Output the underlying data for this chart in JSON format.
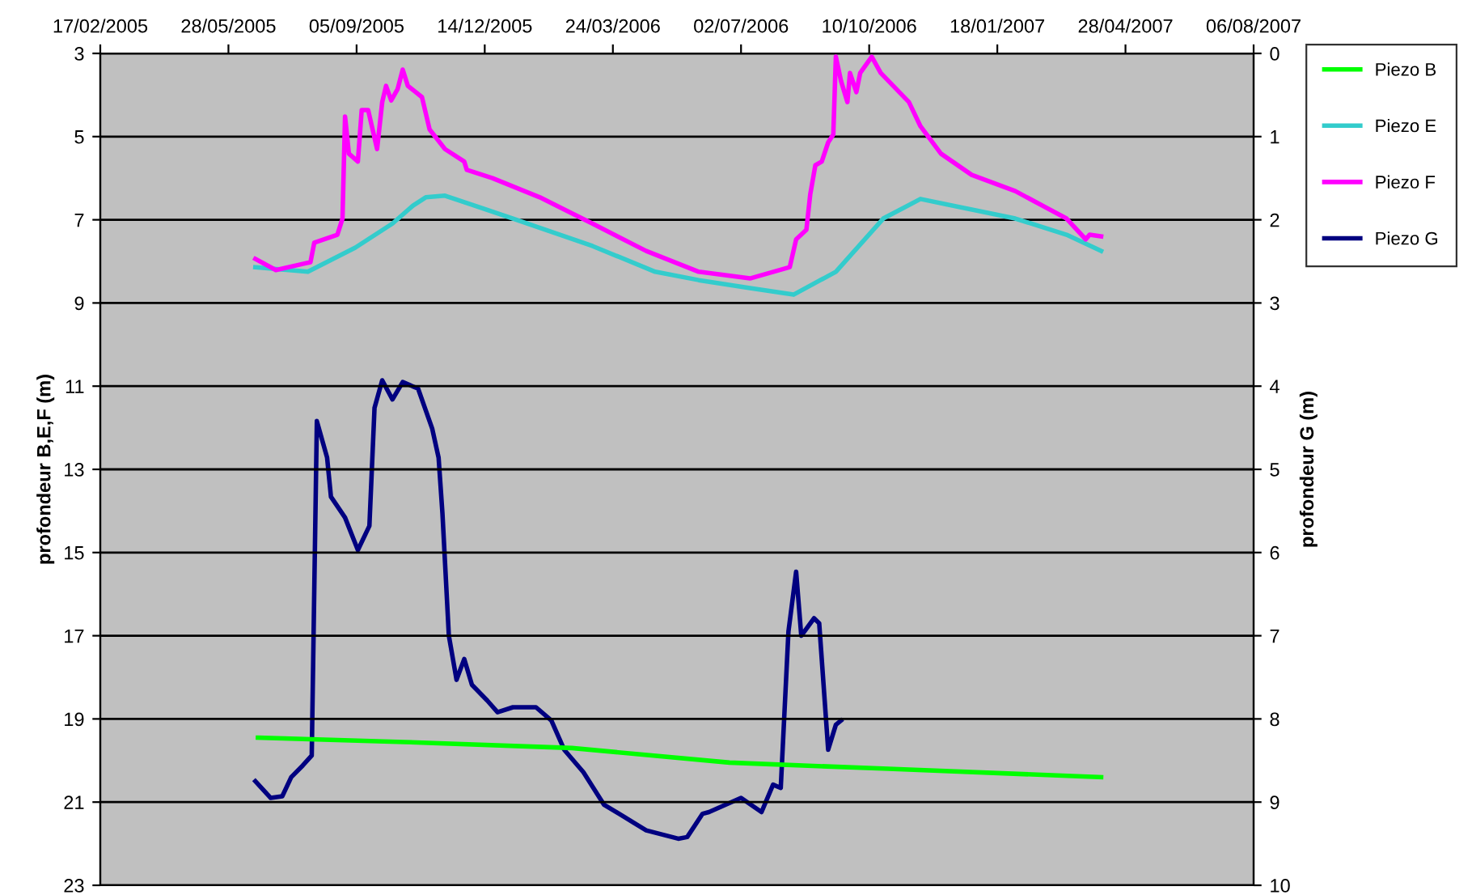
{
  "chart_data": {
    "type": "line",
    "ylabel": "profondeur B,E,F (m)",
    "y2label": "profondeur G (m)",
    "xlim": [
      "2005-02-17",
      "2007-08-06"
    ],
    "xticks": [
      {
        "value": "2005-02-17",
        "label": "17/02/2005"
      },
      {
        "value": "2005-05-28",
        "label": "28/05/2005"
      },
      {
        "value": "2005-09-05",
        "label": "05/09/2005"
      },
      {
        "value": "2005-12-14",
        "label": "14/12/2005"
      },
      {
        "value": "2006-03-24",
        "label": "24/03/2006"
      },
      {
        "value": "2006-07-02",
        "label": "02/07/2006"
      },
      {
        "value": "2006-10-10",
        "label": "10/10/2006"
      },
      {
        "value": "2007-01-18",
        "label": "18/01/2007"
      },
      {
        "value": "2007-04-28",
        "label": "28/04/2007"
      },
      {
        "value": "2007-08-06",
        "label": "06/08/2007"
      }
    ],
    "ylim": [
      23,
      3
    ],
    "yticks": [
      3,
      5,
      7,
      9,
      11,
      13,
      15,
      17,
      19,
      21,
      23
    ],
    "y2lim": [
      10,
      0
    ],
    "y2ticks": [
      0,
      1,
      2,
      3,
      4,
      5,
      6,
      7,
      8,
      9,
      10
    ],
    "grid": "y",
    "legend": "right",
    "line_style": "solid",
    "marker": "none",
    "series": [
      {
        "name": "Piezo B",
        "color": "#00ff00",
        "x": [
          "2005-06-20",
          "2005-10-07",
          "2006-02-20",
          "2006-06-23",
          "2006-10-25",
          "2007-04-09"
        ],
        "values": [
          19.45,
          19.55,
          19.7,
          20.05,
          20.2,
          20.4
        ]
      },
      {
        "name": "Piezo E",
        "color": "#33cccc",
        "x": [
          "2005-06-18",
          "2005-07-29",
          "2005-09-04",
          "2005-10-03",
          "2005-10-19",
          "2005-10-29",
          "2005-11-13",
          "2006-01-05",
          "2006-03-08",
          "2006-04-26",
          "2006-05-30",
          "2006-07-09",
          "2006-08-12",
          "2006-09-14",
          "2006-10-21",
          "2006-11-19",
          "2007-02-01",
          "2007-03-13",
          "2007-04-09"
        ],
        "values": [
          8.14,
          8.25,
          7.67,
          7.09,
          6.66,
          6.46,
          6.42,
          6.97,
          7.63,
          8.25,
          8.45,
          8.64,
          8.8,
          8.25,
          6.97,
          6.5,
          6.97,
          7.36,
          7.75
        ]
      },
      {
        "name": "Piezo F",
        "color": "#ff00ff",
        "x": [
          "2005-06-18",
          "2005-07-04",
          "2005-07-25",
          "2005-07-31",
          "2005-08-03",
          "2005-08-21",
          "2005-08-25",
          "2005-08-27",
          "2005-08-30",
          "2005-09-06",
          "2005-09-09",
          "2005-09-14",
          "2005-09-21",
          "2005-09-25",
          "2005-09-28",
          "2005-10-02",
          "2005-10-07",
          "2005-10-11",
          "2005-10-15",
          "2005-10-26",
          "2005-11-01",
          "2005-11-13",
          "2005-11-28",
          "2005-11-30",
          "2005-12-20",
          "2006-01-26",
          "2006-03-08",
          "2006-04-19",
          "2006-05-30",
          "2006-07-09",
          "2006-08-09",
          "2006-08-14",
          "2006-08-22",
          "2006-08-25",
          "2006-08-29",
          "2006-09-03",
          "2006-09-08",
          "2006-09-12",
          "2006-09-14",
          "2006-09-18",
          "2006-09-23",
          "2006-09-25",
          "2006-09-30",
          "2006-10-03",
          "2006-10-12",
          "2006-10-19",
          "2006-11-10",
          "2006-11-19",
          "2006-12-05",
          "2006-12-29",
          "2007-02-01",
          "2007-03-13",
          "2007-03-28",
          "2007-03-31",
          "2007-04-09"
        ],
        "values": [
          7.94,
          8.21,
          8.06,
          8.02,
          7.55,
          7.36,
          6.97,
          4.52,
          5.41,
          5.6,
          4.36,
          4.36,
          5.3,
          4.17,
          3.78,
          4.13,
          3.86,
          3.39,
          3.78,
          4.05,
          4.83,
          5.3,
          5.6,
          5.8,
          6.0,
          6.46,
          7.09,
          7.75,
          8.25,
          8.41,
          8.14,
          7.47,
          7.24,
          6.39,
          5.69,
          5.6,
          5.14,
          4.95,
          3.08,
          3.66,
          4.17,
          3.47,
          3.93,
          3.47,
          3.08,
          3.47,
          4.17,
          4.75,
          5.41,
          5.92,
          6.31,
          6.97,
          7.47,
          7.36,
          7.4
        ]
      },
      {
        "name": "Piezo G",
        "color": "#000080",
        "axis": "y2",
        "x": [
          "2005-06-18",
          "2005-06-30",
          "2005-07-09",
          "2005-07-16",
          "2005-07-25",
          "2005-08-01",
          "2005-08-05",
          "2005-08-13",
          "2005-08-16",
          "2005-08-27",
          "2005-09-06",
          "2005-09-15",
          "2005-09-19",
          "2005-09-25",
          "2005-10-03",
          "2005-10-11",
          "2005-10-23",
          "2005-11-03",
          "2005-11-08",
          "2005-11-11",
          "2005-11-16",
          "2005-11-22",
          "2005-11-28",
          "2005-12-04",
          "2005-12-16",
          "2005-12-24",
          "2006-01-05",
          "2006-01-23",
          "2006-02-04",
          "2006-02-14",
          "2006-03-01",
          "2006-03-17",
          "2006-04-02",
          "2006-04-19",
          "2006-05-14",
          "2006-05-21",
          "2006-06-02",
          "2006-06-07",
          "2006-07-02",
          "2006-07-18",
          "2006-07-27",
          "2006-08-02",
          "2006-08-08",
          "2006-08-14",
          "2006-08-18",
          "2006-08-28",
          "2006-09-01",
          "2006-09-08",
          "2006-09-14",
          "2006-09-18"
        ],
        "values": [
          8.75,
          8.95,
          8.93,
          8.7,
          8.56,
          8.44,
          4.42,
          4.86,
          5.33,
          5.58,
          5.97,
          5.68,
          4.26,
          3.93,
          4.16,
          3.95,
          4.03,
          4.51,
          4.86,
          5.53,
          7.0,
          7.53,
          7.28,
          7.59,
          7.78,
          7.92,
          7.86,
          7.86,
          8.02,
          8.37,
          8.64,
          9.03,
          9.18,
          9.34,
          9.44,
          9.42,
          9.14,
          9.12,
          8.95,
          9.12,
          8.79,
          8.83,
          6.95,
          6.23,
          7.0,
          6.79,
          6.85,
          8.37,
          8.07,
          8.02
        ]
      }
    ]
  }
}
